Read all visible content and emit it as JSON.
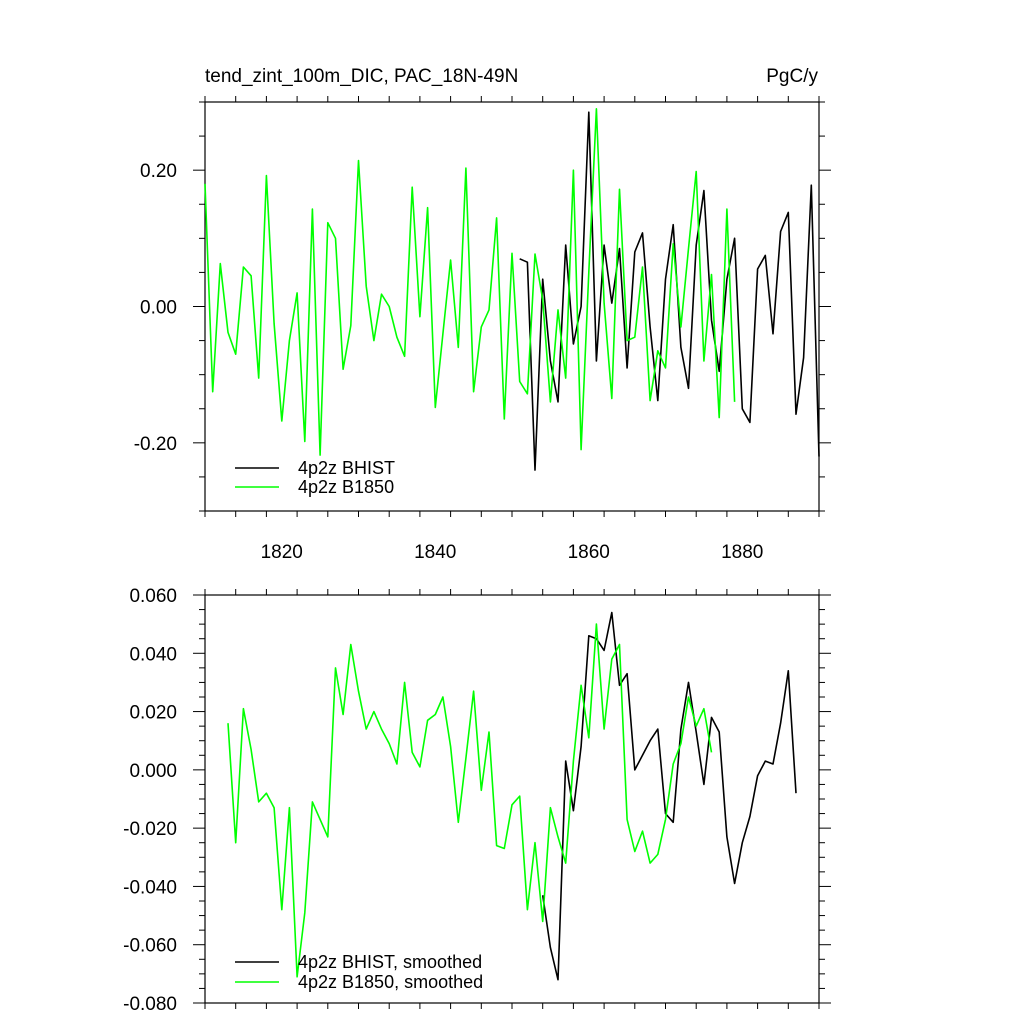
{
  "chart_data": [
    {
      "type": "line",
      "title": "tend_zint_100m_DIC, PAC_18N-49N",
      "units": "PgC/y",
      "xlim": [
        1810,
        1890
      ],
      "ylim": [
        -0.3,
        0.3
      ],
      "x_ticks": [
        1820,
        1840,
        1860,
        1880
      ],
      "x_tick_labels": [
        "1820",
        "1840",
        "1860",
        "1880"
      ],
      "y_ticks": [
        -0.2,
        0.0,
        0.2
      ],
      "y_tick_labels": [
        "-0.20",
        "0.00",
        "0.20"
      ],
      "legend_position": "bottom-left",
      "series": [
        {
          "name": "4p2z BHIST",
          "color": "#000000",
          "x_start": 1851,
          "values": [
            0.07,
            0.065,
            -0.24,
            0.04,
            -0.08,
            -0.14,
            0.09,
            -0.055,
            0.0,
            0.285,
            -0.08,
            0.09,
            0.005,
            0.085,
            -0.09,
            0.08,
            0.108,
            -0.03,
            -0.138,
            0.04,
            0.12,
            -0.06,
            -0.12,
            0.09,
            0.17,
            -0.02,
            -0.095,
            0.04,
            0.1,
            -0.15,
            -0.17,
            0.055,
            0.075,
            -0.04,
            0.11,
            0.138,
            -0.158,
            -0.075,
            0.178,
            -0.22
          ]
        },
        {
          "name": "4p2z B1850",
          "color": "#00ff00",
          "x_start": 1810,
          "values": [
            0.18,
            -0.125,
            0.063,
            -0.038,
            -0.07,
            0.058,
            0.045,
            -0.105,
            0.192,
            -0.025,
            -0.168,
            -0.05,
            0.02,
            -0.198,
            0.143,
            -0.218,
            0.123,
            0.1,
            -0.092,
            -0.028,
            0.214,
            0.03,
            -0.05,
            0.018,
            0.0,
            -0.045,
            -0.073,
            0.175,
            -0.015,
            0.145,
            -0.148,
            -0.04,
            0.068,
            -0.06,
            0.203,
            -0.125,
            -0.03,
            -0.005,
            0.13,
            -0.165,
            0.078,
            -0.11,
            -0.128,
            0.077,
            0.01,
            -0.14,
            -0.005,
            -0.105,
            0.2,
            -0.21,
            0.05,
            0.29,
            0.005,
            -0.135,
            0.172,
            -0.05,
            -0.045,
            0.058,
            -0.138,
            -0.065,
            -0.09,
            0.092,
            -0.03,
            0.085,
            0.198,
            -0.08,
            0.047,
            -0.163,
            0.143,
            -0.14
          ]
        }
      ]
    },
    {
      "type": "line",
      "xlim": [
        1810,
        1890
      ],
      "ylim": [
        -0.08,
        0.06
      ],
      "x_ticks": [
        1820,
        1840,
        1860,
        1880
      ],
      "y_ticks": [
        -0.08,
        -0.06,
        -0.04,
        -0.02,
        0.0,
        0.02,
        0.04,
        0.06
      ],
      "y_tick_labels": [
        "-0.080",
        "-0.060",
        "-0.040",
        "-0.020",
        "0.000",
        "0.020",
        "0.040",
        "0.060"
      ],
      "legend_position": "bottom-left",
      "series": [
        {
          "name": "4p2z BHIST, smoothed",
          "color": "#000000",
          "x_start": 1854,
          "values": [
            -0.043,
            -0.061,
            -0.072,
            0.003,
            -0.014,
            0.008,
            0.046,
            0.045,
            0.041,
            0.054,
            0.029,
            0.033,
            0.0,
            0.005,
            0.01,
            0.014,
            -0.015,
            -0.018,
            0.014,
            0.03,
            0.013,
            -0.005,
            0.018,
            0.013,
            -0.023,
            -0.039,
            -0.025,
            -0.016,
            -0.002,
            0.003,
            0.002,
            0.016,
            0.034,
            -0.008
          ]
        },
        {
          "name": "4p2z B1850, smoothed",
          "color": "#00ff00",
          "x_start": 1813,
          "values": [
            0.016,
            -0.025,
            0.021,
            0.007,
            -0.011,
            -0.008,
            -0.013,
            -0.048,
            -0.013,
            -0.071,
            -0.049,
            -0.011,
            -0.017,
            -0.023,
            0.035,
            0.019,
            0.043,
            0.027,
            0.014,
            0.02,
            0.014,
            0.009,
            0.002,
            0.03,
            0.006,
            0.001,
            0.017,
            0.019,
            0.025,
            0.008,
            -0.018,
            0.004,
            0.027,
            -0.007,
            0.013,
            -0.026,
            -0.027,
            -0.012,
            -0.009,
            -0.048,
            -0.025,
            -0.052,
            -0.013,
            -0.023,
            -0.032,
            0.003,
            0.029,
            0.011,
            0.05,
            0.014,
            0.038,
            0.043,
            -0.017,
            -0.028,
            -0.021,
            -0.032,
            -0.029,
            -0.017,
            0.002,
            0.009,
            0.025,
            0.015,
            0.021,
            0.006
          ]
        }
      ]
    }
  ]
}
